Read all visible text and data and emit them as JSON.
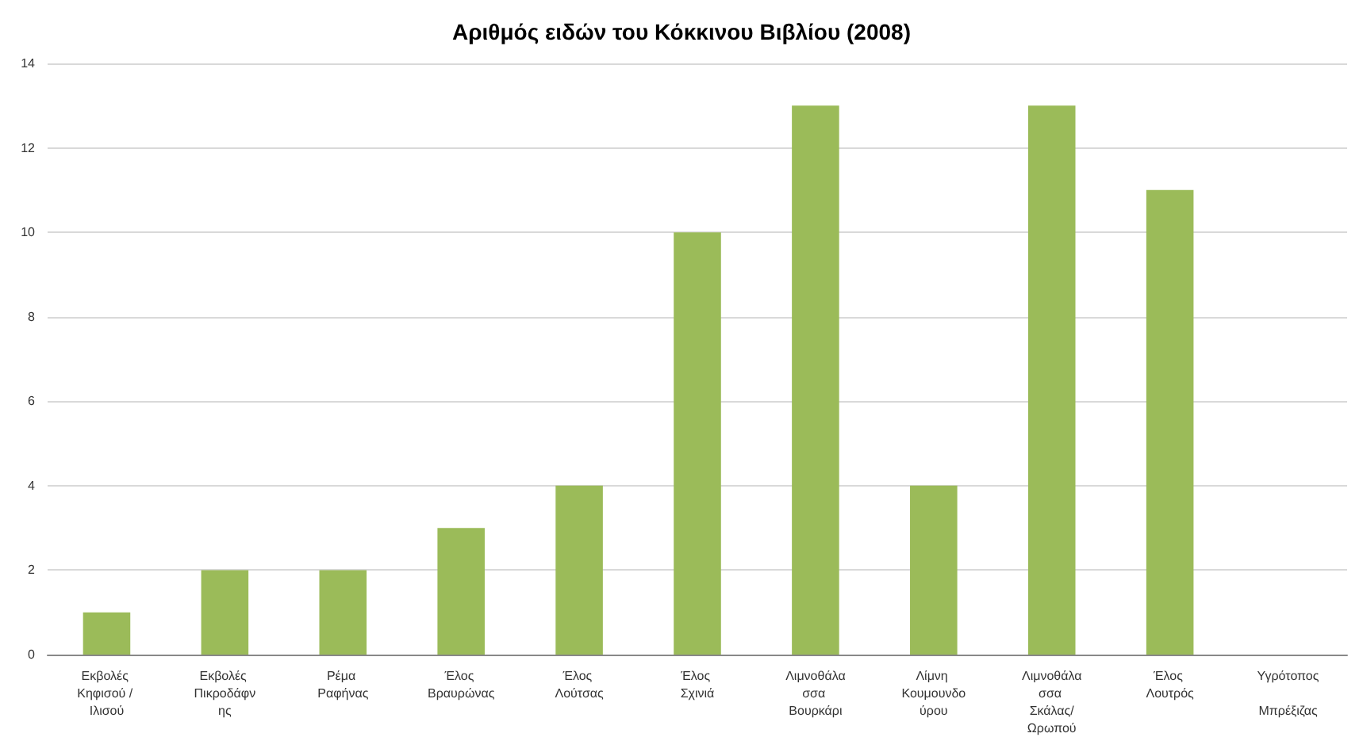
{
  "chart_data": {
    "type": "bar",
    "title": "Αριθμός ειδών του Κόκκινου Βιβλίου (2008)",
    "categories": [
      "Εκβολές Κηφισού / Ιλισού",
      "Εκβολές Πικροδάφνης",
      "Ρέμα Ραφήνας",
      "Έλος Βραυρώνας",
      "Έλος Λούτσας",
      "Έλος Σχινιά",
      "Λιμνοθάλασσα Βουρκάρι",
      "Λίμνη Κουμουνδούρου",
      "Λιμνοθάλασσα Σκάλας/Ωρωπού",
      "Έλος Λουτρός",
      "Υγρότοπος Μπρέξιζας"
    ],
    "values": [
      1,
      2,
      2,
      3,
      4,
      10,
      13,
      4,
      13,
      11,
      0
    ],
    "color": "#9bbb59",
    "ylim": [
      0,
      14
    ],
    "yticks": [
      0,
      2,
      4,
      6,
      8,
      10,
      12,
      14
    ],
    "grid": "y"
  }
}
